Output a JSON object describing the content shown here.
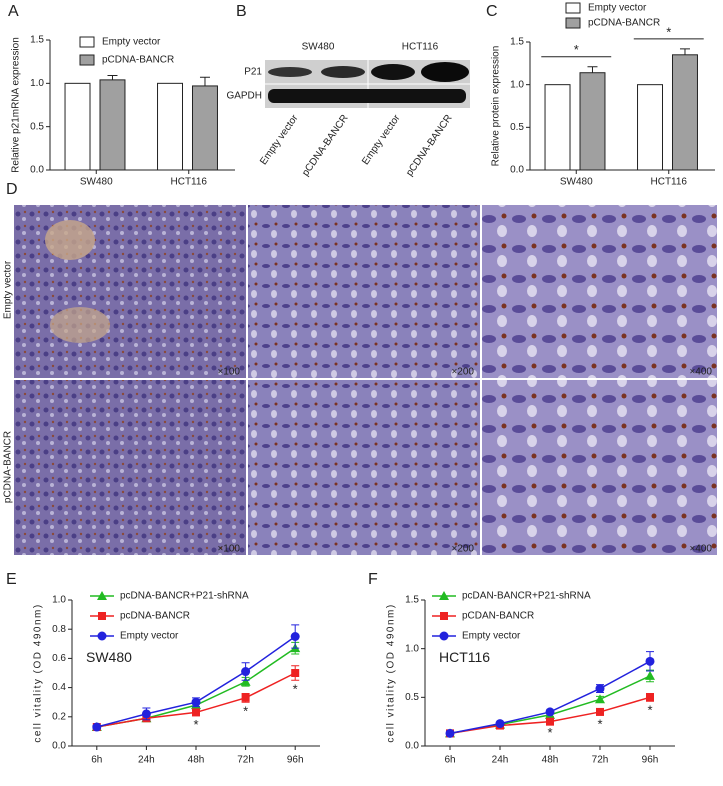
{
  "panels": {
    "a": "A",
    "b": "B",
    "c": "C",
    "d": "D",
    "e": "E",
    "f": "F"
  },
  "blot": {
    "cell_lines": [
      "SW480",
      "HCT116"
    ],
    "rows": [
      "P21",
      "GAPDH"
    ],
    "lanes": [
      "Empty vector",
      "pCDNA-BANCR",
      "Empty vector",
      "pCDNA-BANCR"
    ]
  },
  "histology": {
    "rows": [
      "Empty vector",
      "pCDNA-BANCR"
    ],
    "magnifications": [
      "×100",
      "×200",
      "×400"
    ]
  },
  "chart_data": [
    {
      "type": "bar",
      "ylabel": "Relative p21mRNA expression",
      "categories": [
        "SW480",
        "HCT116"
      ],
      "ylim": [
        0,
        1.5
      ],
      "yticks": [
        {
          "value": 0,
          "label": "0.0"
        },
        0.5,
        {
          "value": 1,
          "label": "1.0"
        },
        1.5
      ],
      "series": [
        {
          "name": "Empty vector",
          "color": "#ffffff",
          "values": [
            1.0,
            1.0
          ]
        },
        {
          "name": "pCDNA-BANCR",
          "color": "#a0a0a0",
          "values": [
            1.04,
            0.97
          ],
          "errors": [
            0.05,
            0.1
          ]
        }
      ]
    },
    {
      "type": "bar",
      "ylabel": "Relative protein expression",
      "categories": [
        "SW480",
        "HCT116"
      ],
      "ylim": [
        0,
        1.5
      ],
      "yticks": [
        {
          "value": 0,
          "label": "0.0"
        },
        0.5,
        {
          "value": 1,
          "label": "1.0"
        },
        1.5
      ],
      "annotations": [
        "*",
        "*"
      ],
      "series": [
        {
          "name": "Empty vector",
          "color": "#ffffff",
          "values": [
            1.0,
            1.0
          ]
        },
        {
          "name": "pCDNA-BANCR",
          "color": "#a0a0a0",
          "values": [
            1.14,
            1.35
          ],
          "errors": [
            0.07,
            0.07
          ]
        }
      ]
    },
    {
      "type": "line",
      "ylabel": "cell vitality (OD 490nm)",
      "annotation": "SW480",
      "categories": [
        "6h",
        "24h",
        "48h",
        "72h",
        "96h"
      ],
      "ylim": [
        0,
        1.0
      ],
      "yticks": [
        {
          "value": 0,
          "label": "0.0"
        },
        0.2,
        0.4,
        0.6,
        0.8,
        {
          "value": 1,
          "label": "1.0"
        }
      ],
      "annotations": [
        null,
        null,
        "*",
        "*",
        "*"
      ],
      "series": [
        {
          "name": "pcDNA-BANCR+P21-shRNA",
          "color": "#22bb22",
          "marker": "triangle",
          "values": [
            0.13,
            0.19,
            0.28,
            0.44,
            0.67
          ],
          "errors": [
            0.01,
            0.01,
            0.02,
            0.03,
            0.04
          ]
        },
        {
          "name": "pcDNA-BANCR",
          "color": "#ee2222",
          "marker": "square",
          "values": [
            0.13,
            0.19,
            0.23,
            0.33,
            0.5
          ],
          "errors": [
            0.01,
            0.01,
            0.02,
            0.03,
            0.05
          ]
        },
        {
          "name": "Empty vector",
          "color": "#2222dd",
          "marker": "circle",
          "values": [
            0.13,
            0.22,
            0.3,
            0.51,
            0.75
          ],
          "errors": [
            0.01,
            0.04,
            0.03,
            0.06,
            0.08
          ]
        }
      ]
    },
    {
      "type": "line",
      "ylabel": "cell vitality (OD 490nm)",
      "annotation": "HCT116",
      "categories": [
        "6h",
        "24h",
        "48h",
        "72h",
        "96h"
      ],
      "ylim": [
        0,
        1.5
      ],
      "yticks": [
        {
          "value": 0,
          "label": "0.0"
        },
        0.5,
        {
          "value": 1,
          "label": "1.0"
        },
        1.5
      ],
      "annotations": [
        null,
        null,
        "*",
        "*",
        "*"
      ],
      "series": [
        {
          "name": "pcDAN-BANCR+P21-shRNA",
          "color": "#22bb22",
          "marker": "triangle",
          "values": [
            0.13,
            0.22,
            0.32,
            0.48,
            0.72
          ],
          "errors": [
            0.01,
            0.01,
            0.02,
            0.03,
            0.06
          ]
        },
        {
          "name": "pCDAN-BANCR",
          "color": "#ee2222",
          "marker": "square",
          "values": [
            0.13,
            0.21,
            0.25,
            0.35,
            0.5
          ],
          "errors": [
            0.01,
            0.01,
            0.02,
            0.03,
            0.04
          ]
        },
        {
          "name": "Empty vector",
          "color": "#2222dd",
          "marker": "circle",
          "values": [
            0.13,
            0.23,
            0.35,
            0.59,
            0.87
          ],
          "errors": [
            0.01,
            0.01,
            0.02,
            0.04,
            0.1
          ]
        }
      ]
    }
  ]
}
